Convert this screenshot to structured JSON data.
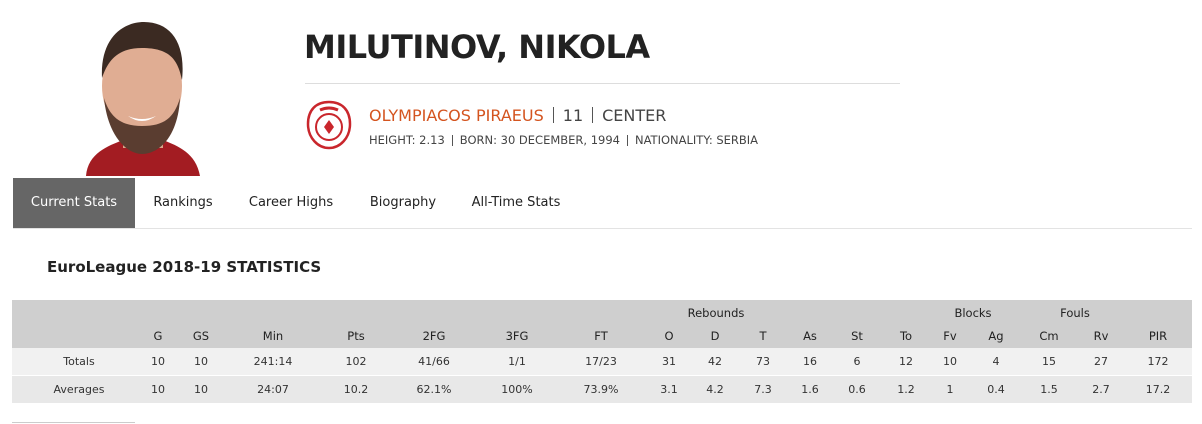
{
  "player": {
    "name": "MILUTINOV, NIKOLA",
    "team": "OLYMPIACOS PIRAEUS",
    "number": 11,
    "position": "CENTER",
    "bio": [
      "HEIGHT: 2.13",
      "BORN: 30 DECEMBER, 1994",
      "NATIONALITY: SERBIA"
    ]
  },
  "tabs": [
    "Current Stats",
    "Rankings",
    "Career Highs",
    "Biography",
    "All-Time Stats"
  ],
  "section_title": "EuroLeague 2018-19 STATISTICS",
  "table": {
    "groups": [
      {
        "label": "Rebounds",
        "from": "O",
        "to": "T"
      },
      {
        "label": "Blocks",
        "from": "Fv",
        "to": "Ag"
      },
      {
        "label": "Fouls",
        "from": "Cm",
        "to": "Rv"
      }
    ],
    "headers": [
      "G",
      "GS",
      "Min",
      "Pts",
      "2FG",
      "3FG",
      "FT",
      "O",
      "D",
      "T",
      "As",
      "St",
      "To",
      "Fv",
      "Ag",
      "Cm",
      "Rv",
      "PIR"
    ],
    "rows": [
      [
        "Totals",
        10,
        10,
        "241:14",
        102,
        "41/66",
        "1/1",
        "17/23",
        31,
        42,
        73,
        16,
        6,
        12,
        10,
        4,
        15,
        27,
        172
      ],
      [
        "Averages",
        10,
        10,
        "24:07",
        10.2,
        "62.1%",
        "100%",
        "73.9%",
        3.1,
        4.2,
        7.3,
        1.6,
        0.6,
        1.2,
        1,
        0.4,
        1.5,
        2.7,
        17.2
      ]
    ]
  }
}
